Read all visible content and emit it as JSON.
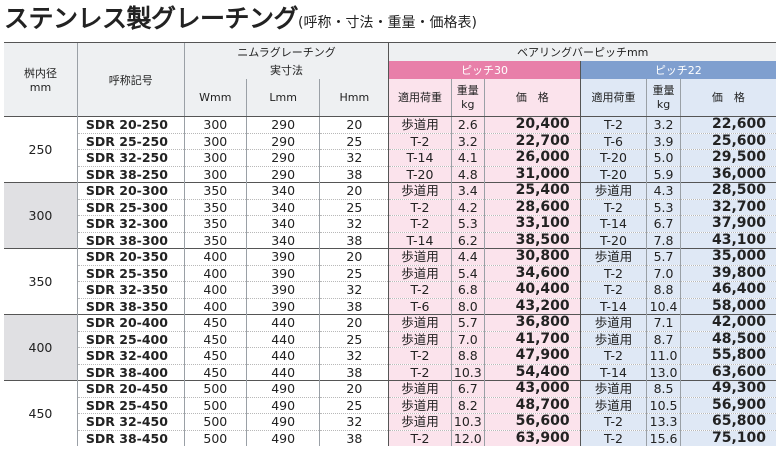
{
  "title": {
    "main": "ステンレス製グレーチング",
    "sub": "(呼称・寸法・重量・価格表)"
  },
  "headers": {
    "diameter": "桝内径",
    "diameter_unit": "mm",
    "code": "呼称記号",
    "nimura": "ニムラグレーチング",
    "actual": "実寸法",
    "w": "Wmm",
    "l": "Lmm",
    "h": "Hmm",
    "bearing": "ベアリングバーピッチmm",
    "p30": "ピッチ30",
    "p22": "ピッチ22",
    "load": "適用荷重",
    "weight": "重量",
    "weight_unit": "kg",
    "price": "価　格"
  },
  "groups": [
    {
      "diameter": "250",
      "shade": false,
      "rows": [
        {
          "code": "SDR 20-250",
          "w": "300",
          "l": "290",
          "h": "20",
          "l30": "歩道用",
          "kg30": "2.6",
          "p30": "20,400",
          "l22": "T-2",
          "kg22": "3.2",
          "p22": "22,600"
        },
        {
          "code": "SDR 25-250",
          "w": "300",
          "l": "290",
          "h": "25",
          "l30": "T-2",
          "kg30": "3.2",
          "p30": "22,700",
          "l22": "T-6",
          "kg22": "3.9",
          "p22": "25,600"
        },
        {
          "code": "SDR 32-250",
          "w": "300",
          "l": "290",
          "h": "32",
          "l30": "T-14",
          "kg30": "4.1",
          "p30": "26,000",
          "l22": "T-20",
          "kg22": "5.0",
          "p22": "29,500"
        },
        {
          "code": "SDR 38-250",
          "w": "300",
          "l": "290",
          "h": "38",
          "l30": "T-20",
          "kg30": "4.8",
          "p30": "31,000",
          "l22": "T-20",
          "kg22": "5.9",
          "p22": "36,000"
        }
      ]
    },
    {
      "diameter": "300",
      "shade": true,
      "rows": [
        {
          "code": "SDR 20-300",
          "w": "350",
          "l": "340",
          "h": "20",
          "l30": "歩道用",
          "kg30": "3.4",
          "p30": "25,400",
          "l22": "歩道用",
          "kg22": "4.3",
          "p22": "28,500"
        },
        {
          "code": "SDR 25-300",
          "w": "350",
          "l": "340",
          "h": "25",
          "l30": "T-2",
          "kg30": "4.2",
          "p30": "28,600",
          "l22": "T-2",
          "kg22": "5.3",
          "p22": "32,700"
        },
        {
          "code": "SDR 32-300",
          "w": "350",
          "l": "340",
          "h": "32",
          "l30": "T-2",
          "kg30": "5.3",
          "p30": "33,100",
          "l22": "T-14",
          "kg22": "6.7",
          "p22": "37,900"
        },
        {
          "code": "SDR 38-300",
          "w": "350",
          "l": "340",
          "h": "38",
          "l30": "T-14",
          "kg30": "6.2",
          "p30": "38,500",
          "l22": "T-20",
          "kg22": "7.8",
          "p22": "43,100"
        }
      ]
    },
    {
      "diameter": "350",
      "shade": false,
      "rows": [
        {
          "code": "SDR 20-350",
          "w": "400",
          "l": "390",
          "h": "20",
          "l30": "歩道用",
          "kg30": "4.4",
          "p30": "30,800",
          "l22": "歩道用",
          "kg22": "5.7",
          "p22": "35,000"
        },
        {
          "code": "SDR 25-350",
          "w": "400",
          "l": "390",
          "h": "25",
          "l30": "歩道用",
          "kg30": "5.4",
          "p30": "34,600",
          "l22": "T-2",
          "kg22": "7.0",
          "p22": "39,800"
        },
        {
          "code": "SDR 32-350",
          "w": "400",
          "l": "390",
          "h": "32",
          "l30": "T-2",
          "kg30": "6.8",
          "p30": "40,400",
          "l22": "T-2",
          "kg22": "8.8",
          "p22": "46,400"
        },
        {
          "code": "SDR 38-350",
          "w": "400",
          "l": "390",
          "h": "38",
          "l30": "T-6",
          "kg30": "8.0",
          "p30": "43,200",
          "l22": "T-14",
          "kg22": "10.4",
          "p22": "58,000"
        }
      ]
    },
    {
      "diameter": "400",
      "shade": true,
      "rows": [
        {
          "code": "SDR 20-400",
          "w": "450",
          "l": "440",
          "h": "20",
          "l30": "歩道用",
          "kg30": "5.7",
          "p30": "36,800",
          "l22": "歩道用",
          "kg22": "7.1",
          "p22": "42,000"
        },
        {
          "code": "SDR 25-400",
          "w": "450",
          "l": "440",
          "h": "25",
          "l30": "歩道用",
          "kg30": "7.0",
          "p30": "41,700",
          "l22": "歩道用",
          "kg22": "8.7",
          "p22": "48,500"
        },
        {
          "code": "SDR 32-400",
          "w": "450",
          "l": "440",
          "h": "32",
          "l30": "T-2",
          "kg30": "8.8",
          "p30": "47,900",
          "l22": "T-2",
          "kg22": "11.0",
          "p22": "55,800"
        },
        {
          "code": "SDR 38-400",
          "w": "450",
          "l": "440",
          "h": "38",
          "l30": "T-2",
          "kg30": "10.3",
          "p30": "54,400",
          "l22": "T-14",
          "kg22": "13.0",
          "p22": "63,600"
        }
      ]
    },
    {
      "diameter": "450",
      "shade": false,
      "rows": [
        {
          "code": "SDR 20-450",
          "w": "500",
          "l": "490",
          "h": "20",
          "l30": "歩道用",
          "kg30": "6.7",
          "p30": "43,000",
          "l22": "歩道用",
          "kg22": "8.5",
          "p22": "49,300"
        },
        {
          "code": "SDR 25-450",
          "w": "500",
          "l": "490",
          "h": "25",
          "l30": "歩道用",
          "kg30": "8.2",
          "p30": "48,700",
          "l22": "歩道用",
          "kg22": "10.5",
          "p22": "56,900"
        },
        {
          "code": "SDR 32-450",
          "w": "500",
          "l": "490",
          "h": "32",
          "l30": "歩道用",
          "kg30": "10.3",
          "p30": "56,600",
          "l22": "T-2",
          "kg22": "13.3",
          "p22": "65,800"
        },
        {
          "code": "SDR 38-450",
          "w": "500",
          "l": "490",
          "h": "38",
          "l30": "T-2",
          "kg30": "12.0",
          "p30": "63,900",
          "l22": "T-2",
          "kg22": "15.6",
          "p22": "75,100"
        }
      ]
    }
  ]
}
